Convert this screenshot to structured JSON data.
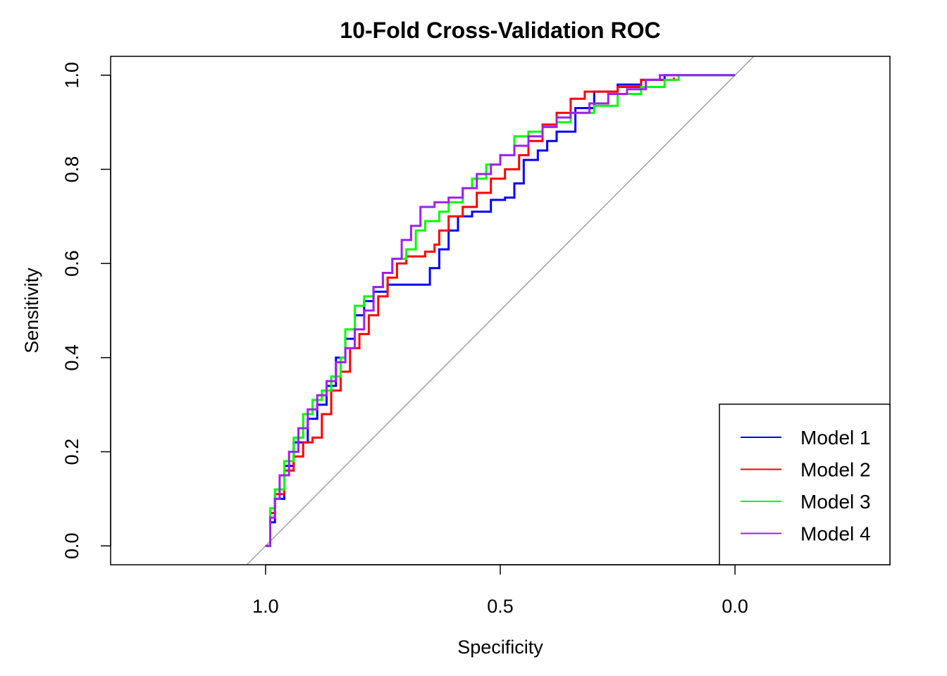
{
  "chart_data": {
    "type": "line",
    "title": "10-Fold Cross-Validation ROC",
    "xlabel": "Specificity",
    "ylabel": "Sensitivity",
    "xlim": [
      1.33,
      -0.33
    ],
    "ylim": [
      -0.04,
      1.04
    ],
    "x_reversed": true,
    "xticks": [
      1.0,
      0.5,
      0.0
    ],
    "xtick_labels": [
      "1.0",
      "0.5",
      "0.0"
    ],
    "yticks": [
      0.0,
      0.2,
      0.4,
      0.6,
      0.8,
      1.0
    ],
    "ytick_labels": [
      "0.0",
      "0.2",
      "0.4",
      "0.6",
      "0.8",
      "1.0"
    ],
    "grid": false,
    "legend_position": "bottom-right",
    "reference_line": {
      "color": "#a0a0a0",
      "points": [
        [
          1.0,
          0.0
        ],
        [
          0.0,
          1.0
        ]
      ]
    },
    "series": [
      {
        "name": "Model 1",
        "color": "#0000ff",
        "points": [
          [
            1.0,
            0.0
          ],
          [
            0.99,
            0.05
          ],
          [
            0.98,
            0.1
          ],
          [
            0.96,
            0.17
          ],
          [
            0.94,
            0.22
          ],
          [
            0.91,
            0.27
          ],
          [
            0.89,
            0.3
          ],
          [
            0.87,
            0.34
          ],
          [
            0.85,
            0.4
          ],
          [
            0.83,
            0.44
          ],
          [
            0.81,
            0.49
          ],
          [
            0.79,
            0.52
          ],
          [
            0.77,
            0.54
          ],
          [
            0.74,
            0.555
          ],
          [
            0.7,
            0.555
          ],
          [
            0.67,
            0.555
          ],
          [
            0.65,
            0.59
          ],
          [
            0.63,
            0.63
          ],
          [
            0.61,
            0.67
          ],
          [
            0.59,
            0.7
          ],
          [
            0.56,
            0.71
          ],
          [
            0.52,
            0.735
          ],
          [
            0.49,
            0.74
          ],
          [
            0.47,
            0.77
          ],
          [
            0.45,
            0.82
          ],
          [
            0.42,
            0.84
          ],
          [
            0.4,
            0.86
          ],
          [
            0.38,
            0.88
          ],
          [
            0.34,
            0.93
          ],
          [
            0.3,
            0.965
          ],
          [
            0.25,
            0.98
          ],
          [
            0.2,
            0.99
          ],
          [
            0.15,
            1.0
          ],
          [
            0.0,
            1.0
          ]
        ]
      },
      {
        "name": "Model 2",
        "color": "#ff0000",
        "points": [
          [
            1.0,
            0.0
          ],
          [
            0.99,
            0.07
          ],
          [
            0.98,
            0.11
          ],
          [
            0.96,
            0.16
          ],
          [
            0.94,
            0.19
          ],
          [
            0.92,
            0.22
          ],
          [
            0.9,
            0.23
          ],
          [
            0.88,
            0.28
          ],
          [
            0.86,
            0.33
          ],
          [
            0.84,
            0.37
          ],
          [
            0.82,
            0.42
          ],
          [
            0.8,
            0.45
          ],
          [
            0.78,
            0.49
          ],
          [
            0.76,
            0.53
          ],
          [
            0.74,
            0.57
          ],
          [
            0.72,
            0.6
          ],
          [
            0.7,
            0.615
          ],
          [
            0.66,
            0.625
          ],
          [
            0.64,
            0.64
          ],
          [
            0.63,
            0.67
          ],
          [
            0.61,
            0.7
          ],
          [
            0.58,
            0.72
          ],
          [
            0.55,
            0.75
          ],
          [
            0.52,
            0.78
          ],
          [
            0.49,
            0.8
          ],
          [
            0.46,
            0.83
          ],
          [
            0.44,
            0.86
          ],
          [
            0.41,
            0.895
          ],
          [
            0.38,
            0.92
          ],
          [
            0.35,
            0.95
          ],
          [
            0.32,
            0.965
          ],
          [
            0.25,
            0.975
          ],
          [
            0.2,
            0.99
          ],
          [
            0.13,
            0.995
          ]
        ]
      },
      {
        "name": "Model 3",
        "color": "#00ff00",
        "points": [
          [
            1.0,
            0.0
          ],
          [
            0.99,
            0.08
          ],
          [
            0.98,
            0.12
          ],
          [
            0.96,
            0.18
          ],
          [
            0.94,
            0.23
          ],
          [
            0.92,
            0.28
          ],
          [
            0.9,
            0.31
          ],
          [
            0.88,
            0.33
          ],
          [
            0.86,
            0.36
          ],
          [
            0.84,
            0.4
          ],
          [
            0.83,
            0.46
          ],
          [
            0.81,
            0.51
          ],
          [
            0.79,
            0.53
          ],
          [
            0.77,
            0.55
          ],
          [
            0.75,
            0.58
          ],
          [
            0.73,
            0.61
          ],
          [
            0.7,
            0.63
          ],
          [
            0.68,
            0.67
          ],
          [
            0.66,
            0.69
          ],
          [
            0.63,
            0.71
          ],
          [
            0.61,
            0.73
          ],
          [
            0.58,
            0.76
          ],
          [
            0.56,
            0.78
          ],
          [
            0.53,
            0.81
          ],
          [
            0.5,
            0.83
          ],
          [
            0.47,
            0.87
          ],
          [
            0.44,
            0.88
          ],
          [
            0.41,
            0.89
          ],
          [
            0.38,
            0.9
          ],
          [
            0.35,
            0.92
          ],
          [
            0.3,
            0.935
          ],
          [
            0.25,
            0.96
          ],
          [
            0.2,
            0.975
          ],
          [
            0.15,
            0.99
          ],
          [
            0.12,
            1.0
          ],
          [
            0.0,
            1.0
          ]
        ]
      },
      {
        "name": "Model 4",
        "color": "#a020f0",
        "points": [
          [
            1.0,
            0.0
          ],
          [
            0.99,
            0.06
          ],
          [
            0.98,
            0.1
          ],
          [
            0.97,
            0.15
          ],
          [
            0.95,
            0.2
          ],
          [
            0.93,
            0.25
          ],
          [
            0.91,
            0.29
          ],
          [
            0.89,
            0.32
          ],
          [
            0.87,
            0.35
          ],
          [
            0.85,
            0.39
          ],
          [
            0.83,
            0.42
          ],
          [
            0.81,
            0.46
          ],
          [
            0.79,
            0.5
          ],
          [
            0.77,
            0.55
          ],
          [
            0.75,
            0.58
          ],
          [
            0.73,
            0.61
          ],
          [
            0.71,
            0.65
          ],
          [
            0.69,
            0.68
          ],
          [
            0.67,
            0.72
          ],
          [
            0.64,
            0.73
          ],
          [
            0.61,
            0.74
          ],
          [
            0.58,
            0.76
          ],
          [
            0.55,
            0.79
          ],
          [
            0.52,
            0.81
          ],
          [
            0.5,
            0.83
          ],
          [
            0.47,
            0.85
          ],
          [
            0.44,
            0.87
          ],
          [
            0.41,
            0.89
          ],
          [
            0.38,
            0.91
          ],
          [
            0.35,
            0.92
          ],
          [
            0.31,
            0.94
          ],
          [
            0.27,
            0.96
          ],
          [
            0.23,
            0.97
          ],
          [
            0.19,
            0.99
          ],
          [
            0.16,
            1.0
          ],
          [
            0.0,
            1.0
          ]
        ]
      }
    ]
  }
}
